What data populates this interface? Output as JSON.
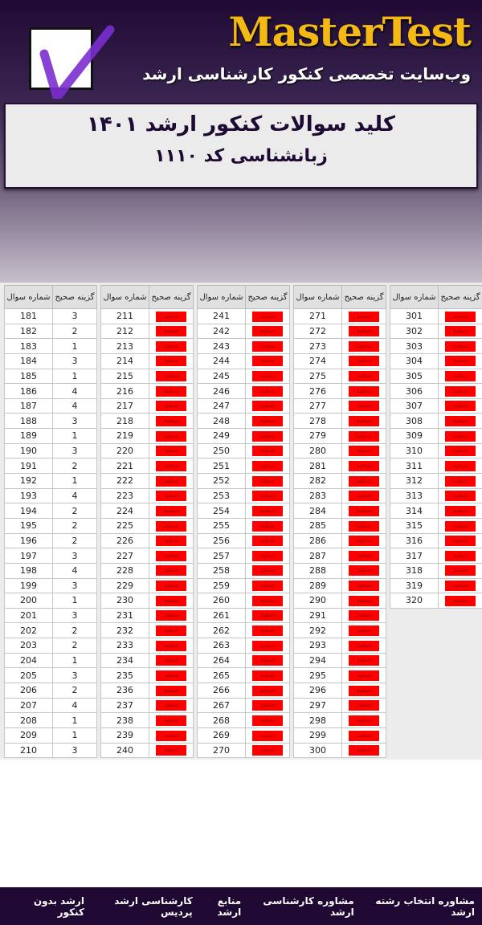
{
  "header": {
    "brand": "MasterTest",
    "tagline": "وب‌سایت تخصصی کنکور کارشناسی ارشد",
    "logo_icon": "checkmark-icon"
  },
  "title": {
    "line1": "کلید سوالات کنکور ارشد ۱۴۰۱",
    "line2": "زبانشناسی کد ۱۱۱۰"
  },
  "table_headers": {
    "question": "شماره سوال",
    "answer": "گزینه صحیح"
  },
  "blank_label": "سفید",
  "colors": {
    "blank": "#ff0000",
    "brand": "#f5b914",
    "dark": "#1f0831"
  },
  "tables": [
    {
      "questions": [
        "181",
        "182",
        "183",
        "184",
        "185",
        "186",
        "187",
        "188",
        "189",
        "190",
        "191",
        "192",
        "193",
        "194",
        "195",
        "196",
        "197",
        "198",
        "199",
        "200",
        "201",
        "202",
        "203",
        "204",
        "205",
        "206",
        "207",
        "208",
        "209",
        "210"
      ],
      "answers": [
        "3",
        "2",
        "1",
        "3",
        "1",
        "4",
        "4",
        "3",
        "1",
        "3",
        "2",
        "1",
        "4",
        "2",
        "2",
        "2",
        "3",
        "4",
        "3",
        "1",
        "3",
        "2",
        "2",
        "1",
        "3",
        "2",
        "4",
        "1",
        "1",
        "3"
      ]
    },
    {
      "questions": [
        "211",
        "212",
        "213",
        "214",
        "215",
        "216",
        "217",
        "218",
        "219",
        "220",
        "221",
        "222",
        "223",
        "224",
        "225",
        "226",
        "227",
        "228",
        "229",
        "230",
        "231",
        "232",
        "233",
        "234",
        "235",
        "236",
        "237",
        "238",
        "239",
        "240"
      ],
      "answers": []
    },
    {
      "questions": [
        "241",
        "242",
        "243",
        "244",
        "245",
        "246",
        "247",
        "248",
        "249",
        "250",
        "251",
        "252",
        "253",
        "254",
        "255",
        "256",
        "257",
        "258",
        "259",
        "260",
        "261",
        "262",
        "263",
        "264",
        "265",
        "266",
        "267",
        "268",
        "269",
        "270"
      ],
      "answers": []
    },
    {
      "questions": [
        "271",
        "272",
        "273",
        "274",
        "275",
        "276",
        "277",
        "278",
        "279",
        "280",
        "281",
        "282",
        "283",
        "284",
        "285",
        "286",
        "287",
        "288",
        "289",
        "290",
        "291",
        "292",
        "293",
        "294",
        "295",
        "296",
        "297",
        "298",
        "299",
        "300"
      ],
      "answers": []
    },
    {
      "questions": [
        "301",
        "302",
        "303",
        "304",
        "305",
        "306",
        "307",
        "308",
        "309",
        "310",
        "311",
        "312",
        "313",
        "314",
        "315",
        "316",
        "317",
        "318",
        "319",
        "320"
      ],
      "answers": []
    }
  ],
  "footer": {
    "links": [
      "ارشد بدون کنکور",
      "کارشناسی ارشد پردیس",
      "منابع ارشد",
      "مشاوره کارشناسی ارشد",
      "مشاوره انتخاب رشته ارشد"
    ]
  }
}
